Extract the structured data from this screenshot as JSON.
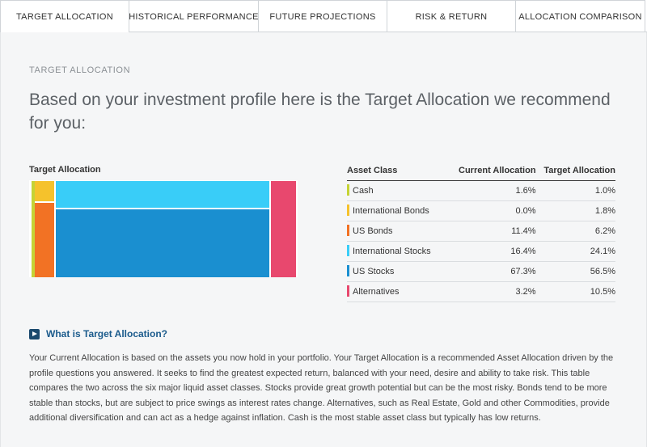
{
  "tabs": [
    {
      "label": "TARGET ALLOCATION"
    },
    {
      "label": "HISTORICAL PERFORMANCE"
    },
    {
      "label": "FUTURE PROJECTIONS"
    },
    {
      "label": "RISK & RETURN"
    },
    {
      "label": "ALLOCATION COMPARISON"
    }
  ],
  "main": {
    "eyebrow": "TARGET ALLOCATION",
    "headline": "Based on your investment profile here is the Target Allocation we recommend for you:",
    "chart_title": "Target Allocation",
    "what_link": "What is Target Allocation?",
    "description": "Your Current Allocation is based on the assets you now hold in your portfolio. Your Target Allocation is a recommended Asset Allocation driven by the profile questions you answered. It seeks to find the greatest expected return, balanced with your need, desire and ability to take risk. This table compares the two across the six major liquid asset classes. Stocks provide great growth potential but can be the most risky. Bonds tend to be more stable than stocks, but are subject to price swings as interest rates change. Alternatives, such as Real Estate, Gold and other Commodities, provide additional diversification and can act as a hedge against inflation. Cash is the most stable asset class but typically has low returns."
  },
  "table": {
    "headers": {
      "asset": "Asset Class",
      "current": "Current Allocation",
      "target": "Target Allocation"
    },
    "rows": [
      {
        "asset": "Cash",
        "current": "1.6%",
        "target": "1.0%",
        "color": "#c5d335"
      },
      {
        "asset": "International Bonds",
        "current": "0.0%",
        "target": "1.8%",
        "color": "#f5c22c"
      },
      {
        "asset": "US Bonds",
        "current": "11.4%",
        "target": "6.2%",
        "color": "#f27224"
      },
      {
        "asset": "International Stocks",
        "current": "16.4%",
        "target": "24.1%",
        "color": "#39cdf8"
      },
      {
        "asset": "US Stocks",
        "current": "67.3%",
        "target": "56.5%",
        "color": "#1a8fd0"
      },
      {
        "asset": "Alternatives",
        "current": "3.2%",
        "target": "10.5%",
        "color": "#e8486e"
      }
    ]
  },
  "chart_data": {
    "type": "treemap",
    "title": "Target Allocation",
    "items": [
      {
        "name": "Cash",
        "value": 1.0,
        "color": "#c5d335"
      },
      {
        "name": "International Bonds",
        "value": 1.8,
        "color": "#f5c22c"
      },
      {
        "name": "US Bonds",
        "value": 6.2,
        "color": "#f27224"
      },
      {
        "name": "International Stocks",
        "value": 24.1,
        "color": "#39cdf8"
      },
      {
        "name": "US Stocks",
        "value": 56.5,
        "color": "#1a8fd0"
      },
      {
        "name": "Alternatives",
        "value": 10.5,
        "color": "#e8486e"
      }
    ]
  }
}
